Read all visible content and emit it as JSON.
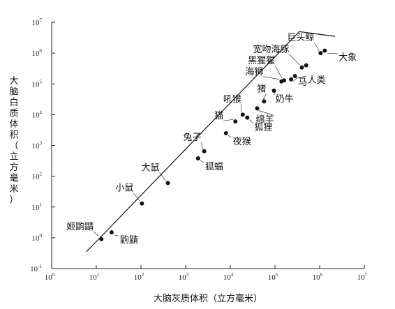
{
  "chart_data": {
    "type": "scatter",
    "xlabel": "大脑灰质体积（立方毫米）",
    "ylabel": "大脑白质体积（立方毫米）",
    "scale": "log-log",
    "xlim_exp": [
      0,
      7
    ],
    "ylim_exp": [
      -1,
      7
    ],
    "x_ticks": [
      "10^0",
      "10^1",
      "10^2",
      "10^3",
      "10^4",
      "10^5",
      "10^6",
      "10^7"
    ],
    "y_ticks": [
      "10^-1",
      "10^0",
      "10^1",
      "10^2",
      "10^3",
      "10^4",
      "10^5",
      "10^6",
      "10^7"
    ],
    "fit_line": {
      "x": [
        6,
        350000
      ],
      "y": [
        0.35,
        5000000
      ]
    },
    "points": [
      {
        "name": "姬鼩鼱",
        "x": 13,
        "y": 0.9
      },
      {
        "name": "鼩鼱",
        "x": 22,
        "y": 1.5
      },
      {
        "name": "小鼠",
        "x": 105,
        "y": 13
      },
      {
        "name": "大鼠",
        "x": 400,
        "y": 60
      },
      {
        "name": "狐蝠",
        "x": 1900,
        "y": 380
      },
      {
        "name": "兔子",
        "x": 2600,
        "y": 650
      },
      {
        "name": "夜猴",
        "x": 8000,
        "y": 2500
      },
      {
        "name": "猫",
        "x": 13000,
        "y": 6000
      },
      {
        "name": "吼猴",
        "x": 19000,
        "y": 10000
      },
      {
        "name": "狐狸",
        "x": 24000,
        "y": 8000
      },
      {
        "name": "绵羊",
        "x": 40000,
        "y": 16000
      },
      {
        "name": "猪",
        "x": 57000,
        "y": 27000
      },
      {
        "name": "奶牛",
        "x": 95000,
        "y": 60000
      },
      {
        "name": "海狮",
        "x": 140000,
        "y": 120000
      },
      {
        "name": "黑猩猩",
        "x": 160000,
        "y": 130000
      },
      {
        "name": "马",
        "x": 230000,
        "y": 140000
      },
      {
        "name": "人类",
        "x": 280000,
        "y": 180000
      },
      {
        "name": "宽吻海豚",
        "x": 400000,
        "y": 340000
      },
      {
        "name": "大象",
        "x": 500000,
        "y": 400000
      },
      {
        "name": "巨头鲸",
        "x": 1050000,
        "y": 1000000
      },
      {
        "name": "大象_2",
        "x": 1300000,
        "y": 1200000
      }
    ],
    "labels": [
      {
        "text": "姬鼩鼱",
        "point": "姬鼩鼱"
      },
      {
        "text": "鼩鼱",
        "point": "鼩鼱"
      },
      {
        "text": "小鼠",
        "point": "小鼠"
      },
      {
        "text": "大鼠",
        "point": "大鼠"
      },
      {
        "text": "狐蝠",
        "point": "狐蝠"
      },
      {
        "text": "兔子",
        "point": "兔子"
      },
      {
        "text": "夜猴",
        "point": "夜猴"
      },
      {
        "text": "猫",
        "point": "猫"
      },
      {
        "text": "吼猴",
        "point": "吼猴"
      },
      {
        "text": "狐狸",
        "point": "狐狸"
      },
      {
        "text": "绵羊",
        "point": "绵羊"
      },
      {
        "text": "猪",
        "point": "猪"
      },
      {
        "text": "奶牛",
        "point": "奶牛"
      },
      {
        "text": "海狮",
        "point": "海狮"
      },
      {
        "text": "黑猩猩",
        "point": "黑猩猩"
      },
      {
        "text": "马",
        "point": "马"
      },
      {
        "text": "人类",
        "point": "人类"
      },
      {
        "text": "宽吻海豚",
        "point": "宽吻海豚"
      },
      {
        "text": "巨头鲸",
        "point": "巨头鲸"
      },
      {
        "text": "大象",
        "point": "大象_2"
      }
    ]
  }
}
